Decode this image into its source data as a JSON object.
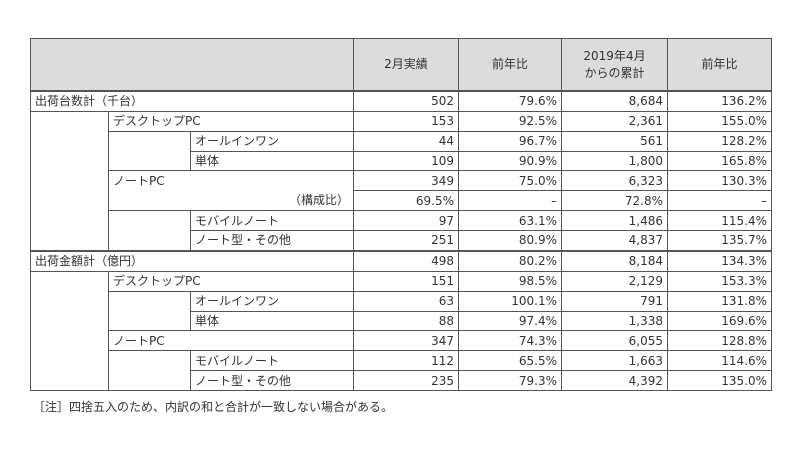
{
  "header": {
    "col1": "2月実績",
    "col2": "前年比",
    "col3_line1": "2019年4月",
    "col3_line2": "からの累計",
    "col4": "前年比"
  },
  "sections": [
    {
      "label": "出荷台数計（千台）",
      "values": [
        "502",
        "79.6%",
        "8,684",
        "136.2%"
      ],
      "desktop": {
        "label": "デスクトップPC",
        "values": [
          "153",
          "92.5%",
          "2,361",
          "155.0%"
        ],
        "children": [
          {
            "label": "オールインワン",
            "values": [
              "44",
              "96.7%",
              "561",
              "128.2%"
            ]
          },
          {
            "label": "単体",
            "values": [
              "109",
              "90.9%",
              "1,800",
              "165.8%"
            ]
          }
        ]
      },
      "notebook": {
        "label": "ノートPC",
        "values": [
          "349",
          "75.0%",
          "6,323",
          "130.3%"
        ],
        "ratio_label": "（構成比）",
        "ratio_values": [
          "69.5%",
          "–",
          "72.8%",
          "–"
        ],
        "children": [
          {
            "label": "モバイルノート",
            "values": [
              "97",
              "63.1%",
              "1,486",
              "115.4%"
            ]
          },
          {
            "label": "ノート型・その他",
            "values": [
              "251",
              "80.9%",
              "4,837",
              "135.7%"
            ]
          }
        ]
      }
    },
    {
      "label": "出荷金額計（億円）",
      "values": [
        "498",
        "80.2%",
        "8,184",
        "134.3%"
      ],
      "desktop": {
        "label": "デスクトップPC",
        "values": [
          "151",
          "98.5%",
          "2,129",
          "153.3%"
        ],
        "children": [
          {
            "label": "オールインワン",
            "values": [
              "63",
              "100.1%",
              "791",
              "131.8%"
            ]
          },
          {
            "label": "単体",
            "values": [
              "88",
              "97.4%",
              "1,338",
              "169.6%"
            ]
          }
        ]
      },
      "notebook": {
        "label": "ノートPC",
        "values": [
          "347",
          "74.3%",
          "6,055",
          "128.8%"
        ],
        "children": [
          {
            "label": "モバイルノート",
            "values": [
              "112",
              "65.5%",
              "1,663",
              "114.6%"
            ]
          },
          {
            "label": "ノート型・その他",
            "values": [
              "235",
              "79.3%",
              "4,392",
              "135.0%"
            ]
          }
        ]
      }
    }
  ],
  "note": "［注］四捨五入のため、内訳の和と合計が一致しない場合がある。"
}
